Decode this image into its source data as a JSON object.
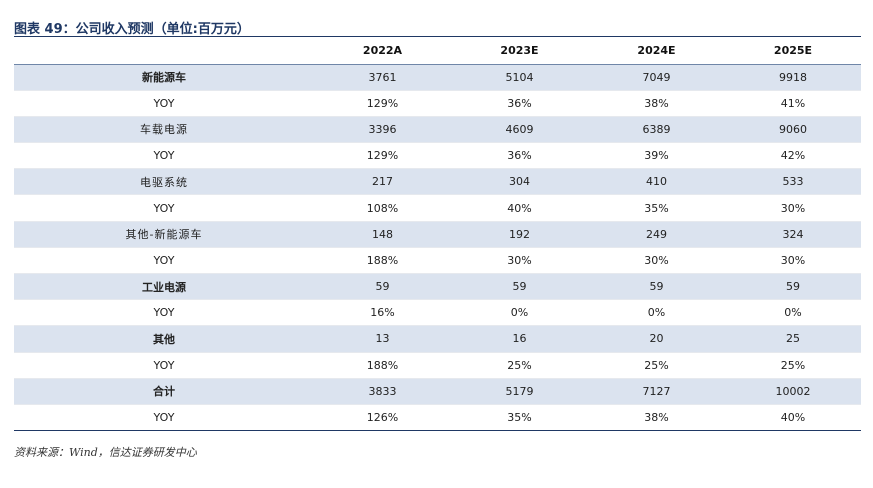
{
  "title": "图表 49：公司收入预测（单位:百万元）",
  "columns": [
    "",
    "2022A",
    "2023E",
    "2024E",
    "2025E"
  ],
  "rows": [
    {
      "label": "新能源车",
      "values": [
        "3761",
        "5104",
        "7049",
        "9918"
      ],
      "shade": true,
      "style": "bold"
    },
    {
      "label": "YOY",
      "values": [
        "129%",
        "36%",
        "38%",
        "41%"
      ],
      "shade": false,
      "style": "yoy"
    },
    {
      "label": "车载电源",
      "values": [
        "3396",
        "4609",
        "6389",
        "9060"
      ],
      "shade": true,
      "style": "sub"
    },
    {
      "label": "YOY",
      "values": [
        "129%",
        "36%",
        "39%",
        "42%"
      ],
      "shade": false,
      "style": "yoy"
    },
    {
      "label": "电驱系统",
      "values": [
        "217",
        "304",
        "410",
        "533"
      ],
      "shade": true,
      "style": "sub"
    },
    {
      "label": "YOY",
      "values": [
        "108%",
        "40%",
        "35%",
        "30%"
      ],
      "shade": false,
      "style": "yoy"
    },
    {
      "label": "其他-新能源车",
      "values": [
        "148",
        "192",
        "249",
        "324"
      ],
      "shade": true,
      "style": "sub"
    },
    {
      "label": "YOY",
      "values": [
        "188%",
        "30%",
        "30%",
        "30%"
      ],
      "shade": false,
      "style": "yoy"
    },
    {
      "label": "工业电源",
      "values": [
        "59",
        "59",
        "59",
        "59"
      ],
      "shade": true,
      "style": "bold"
    },
    {
      "label": "YOY",
      "values": [
        "16%",
        "0%",
        "0%",
        "0%"
      ],
      "shade": false,
      "style": "yoy"
    },
    {
      "label": "其他",
      "values": [
        "13",
        "16",
        "20",
        "25"
      ],
      "shade": true,
      "style": "bold"
    },
    {
      "label": "YOY",
      "values": [
        "188%",
        "25%",
        "25%",
        "25%"
      ],
      "shade": false,
      "style": "yoy"
    },
    {
      "label": "合计",
      "values": [
        "3833",
        "5179",
        "7127",
        "10002"
      ],
      "shade": true,
      "style": "bold"
    },
    {
      "label": "YOY",
      "values": [
        "126%",
        "35%",
        "38%",
        "40%"
      ],
      "shade": false,
      "style": "yoy"
    }
  ],
  "source": "资料来源：Wind，信达证券研发中心",
  "colors": {
    "accent": "#1f3864",
    "row_shade": "#dbe3ef"
  }
}
